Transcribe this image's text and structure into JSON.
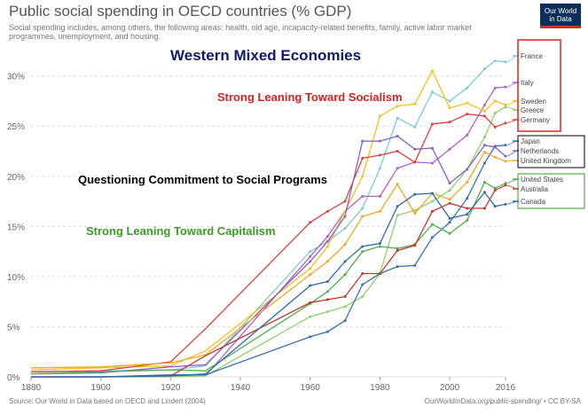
{
  "header": {
    "title": "Public social spending in OECD countries (% GDP)",
    "subtitle": "Social spending includes, among others, the following areas: health, old age, incapacity-related benefits, family, active labor market programmes, unemployment, and housing.",
    "logo_line1": "Our World",
    "logo_line2": "in Data"
  },
  "footer": {
    "source": "Source: Our World in Data based on OECD and Lindert (2004)",
    "url": "OurWorldInData.org/public-spending/ • CC BY-SA"
  },
  "overlays": {
    "western": {
      "text": "Western Mixed Economies",
      "color": "#0d1b6e"
    },
    "socialism": {
      "text": "Strong Leaning Toward Socialism",
      "color": "#e02020"
    },
    "questioning": {
      "text": "Questioning Commitment to Social Programs",
      "color": "#000000"
    },
    "capitalism": {
      "text": "Strong Leaning Toward Capitalism",
      "color": "#3a9d23"
    }
  },
  "groups": [
    {
      "color": "#e02020",
      "members": [
        "France",
        "Italy",
        "Sweden",
        "Greece",
        "Germany"
      ]
    },
    {
      "color": "#000000",
      "members": [
        "Japan",
        "Netherlands",
        "United Kingdom"
      ]
    },
    {
      "color": "#3a9d23",
      "members": [
        "United States",
        "Australia",
        "Canada"
      ]
    }
  ],
  "chart_data": {
    "type": "line",
    "title": "Public social spending in OECD countries (% GDP)",
    "xlim": [
      1880,
      2016
    ],
    "ylim": [
      0,
      32
    ],
    "x_ticks": [
      "1880",
      "1900",
      "1920",
      "1940",
      "1960",
      "1980",
      "2000",
      "2016"
    ],
    "x_tick_values": [
      1880,
      1900,
      1920,
      1940,
      1960,
      1980,
      2000,
      2016
    ],
    "y_ticks": [
      "0%",
      "5%",
      "10%",
      "15%",
      "20%",
      "25%",
      "30%"
    ],
    "y_tick_values": [
      0,
      5,
      10,
      15,
      20,
      25,
      30
    ],
    "grid": true,
    "legend": "right end labels",
    "series": [
      {
        "name": "France",
        "color": "#7ec8d8",
        "points": [
          [
            1880,
            0.5
          ],
          [
            1900,
            0.6
          ],
          [
            1920,
            0.7
          ],
          [
            1930,
            1.1
          ],
          [
            1960,
            12.5
          ],
          [
            1965,
            13.5
          ],
          [
            1970,
            14.8
          ],
          [
            1975,
            16.8
          ],
          [
            1980,
            20.8
          ],
          [
            1985,
            25.8
          ],
          [
            1990,
            24.9
          ],
          [
            1995,
            28.4
          ],
          [
            2000,
            27.5
          ],
          [
            2005,
            28.8
          ],
          [
            2010,
            30.7
          ],
          [
            2013,
            31.5
          ],
          [
            2016,
            31.4
          ]
        ]
      },
      {
        "name": "Italy",
        "color": "#b05ec9",
        "points": [
          [
            1880,
            0.0
          ],
          [
            1900,
            0.0
          ],
          [
            1920,
            0.1
          ],
          [
            1930,
            0.1
          ],
          [
            1960,
            12.0
          ],
          [
            1965,
            14.0
          ],
          [
            1970,
            16.5
          ],
          [
            1975,
            18.0
          ],
          [
            1980,
            18.0
          ],
          [
            1985,
            20.8
          ],
          [
            1990,
            21.4
          ],
          [
            1995,
            21.3
          ],
          [
            2000,
            22.7
          ],
          [
            2005,
            24.1
          ],
          [
            2010,
            27.1
          ],
          [
            2013,
            28.8
          ],
          [
            2016,
            28.9
          ]
        ]
      },
      {
        "name": "Sweden",
        "color": "#f2c21a",
        "points": [
          [
            1880,
            0.7
          ],
          [
            1900,
            0.9
          ],
          [
            1920,
            1.1
          ],
          [
            1930,
            2.6
          ],
          [
            1960,
            10.8
          ],
          [
            1965,
            13.0
          ],
          [
            1970,
            16.5
          ],
          [
            1975,
            20.0
          ],
          [
            1980,
            26.0
          ],
          [
            1985,
            27.0
          ],
          [
            1990,
            27.2
          ],
          [
            1995,
            30.5
          ],
          [
            2000,
            26.8
          ],
          [
            2005,
            27.3
          ],
          [
            2010,
            26.5
          ],
          [
            2013,
            27.5
          ],
          [
            2016,
            27.1
          ]
        ]
      },
      {
        "name": "Greece",
        "color": "#8ed06a",
        "points": [
          [
            1880,
            0.0
          ],
          [
            1900,
            0.0
          ],
          [
            1920,
            0.0
          ],
          [
            1930,
            0.1
          ],
          [
            1960,
            6.0
          ],
          [
            1965,
            6.5
          ],
          [
            1970,
            7.0
          ],
          [
            1975,
            8.0
          ],
          [
            1980,
            10.3
          ],
          [
            1985,
            16.1
          ],
          [
            1990,
            16.6
          ],
          [
            1995,
            17.5
          ],
          [
            2000,
            18.6
          ],
          [
            2005,
            20.7
          ],
          [
            2010,
            23.9
          ],
          [
            2013,
            26.3
          ],
          [
            2016,
            26.9
          ]
        ]
      },
      {
        "name": "Germany",
        "color": "#e0403a",
        "points": [
          [
            1880,
            0.5
          ],
          [
            1900,
            0.6
          ],
          [
            1920,
            1.5
          ],
          [
            1930,
            4.8
          ],
          [
            1960,
            15.4
          ],
          [
            1965,
            16.5
          ],
          [
            1970,
            17.5
          ],
          [
            1975,
            21.8
          ],
          [
            1980,
            22.1
          ],
          [
            1985,
            22.5
          ],
          [
            1990,
            21.4
          ],
          [
            1995,
            25.2
          ],
          [
            2000,
            25.4
          ],
          [
            2005,
            26.2
          ],
          [
            2010,
            26.0
          ],
          [
            2013,
            24.9
          ],
          [
            2016,
            25.3
          ]
        ]
      },
      {
        "name": "Japan",
        "color": "#3a6fb5",
        "points": [
          [
            1880,
            0.0
          ],
          [
            1900,
            0.0
          ],
          [
            1920,
            0.2
          ],
          [
            1930,
            0.2
          ],
          [
            1960,
            4.0
          ],
          [
            1965,
            4.5
          ],
          [
            1970,
            5.6
          ],
          [
            1975,
            9.2
          ],
          [
            1980,
            10.3
          ],
          [
            1985,
            11.0
          ],
          [
            1990,
            11.1
          ],
          [
            1995,
            13.9
          ],
          [
            2000,
            15.4
          ],
          [
            2005,
            17.8
          ],
          [
            2010,
            21.3
          ],
          [
            2013,
            23.0
          ],
          [
            2016,
            23.1
          ]
        ]
      },
      {
        "name": "Netherlands",
        "color": "#8a60c8",
        "points": [
          [
            1880,
            0.3
          ],
          [
            1900,
            0.4
          ],
          [
            1920,
            1.0
          ],
          [
            1930,
            1.2
          ],
          [
            1960,
            11.5
          ],
          [
            1965,
            13.5
          ],
          [
            1970,
            16.0
          ],
          [
            1975,
            23.5
          ],
          [
            1980,
            23.5
          ],
          [
            1985,
            24.0
          ],
          [
            1990,
            22.7
          ],
          [
            1995,
            22.8
          ],
          [
            2000,
            19.3
          ],
          [
            2005,
            20.7
          ],
          [
            2010,
            23.1
          ],
          [
            2013,
            22.9
          ],
          [
            2016,
            22.0
          ]
        ]
      },
      {
        "name": "United Kingdom",
        "color": "#f5a623",
        "points": [
          [
            1880,
            0.9
          ],
          [
            1900,
            1.0
          ],
          [
            1920,
            1.4
          ],
          [
            1930,
            2.2
          ],
          [
            1960,
            10.2
          ],
          [
            1965,
            11.5
          ],
          [
            1970,
            13.2
          ],
          [
            1975,
            16.0
          ],
          [
            1980,
            16.5
          ],
          [
            1985,
            19.2
          ],
          [
            1990,
            16.3
          ],
          [
            1995,
            18.3
          ],
          [
            2000,
            17.7
          ],
          [
            2005,
            19.4
          ],
          [
            2010,
            22.4
          ],
          [
            2013,
            21.9
          ],
          [
            2016,
            21.5
          ]
        ]
      },
      {
        "name": "United States",
        "color": "#4caf50",
        "points": [
          [
            1880,
            0.3
          ],
          [
            1900,
            0.5
          ],
          [
            1920,
            0.7
          ],
          [
            1930,
            0.6
          ],
          [
            1960,
            7.3
          ],
          [
            1965,
            8.5
          ],
          [
            1970,
            10.2
          ],
          [
            1975,
            12.5
          ],
          [
            1980,
            13.0
          ],
          [
            1985,
            12.8
          ],
          [
            1990,
            13.2
          ],
          [
            1995,
            15.2
          ],
          [
            2000,
            14.3
          ],
          [
            2005,
            15.6
          ],
          [
            2010,
            19.4
          ],
          [
            2013,
            18.8
          ],
          [
            2016,
            19.3
          ]
        ]
      },
      {
        "name": "Australia",
        "color": "#c0392b",
        "points": [
          [
            1880,
            0.0
          ],
          [
            1900,
            0.0
          ],
          [
            1920,
            0.1
          ],
          [
            1930,
            2.1
          ],
          [
            1960,
            7.4
          ],
          [
            1965,
            7.7
          ],
          [
            1970,
            8.0
          ],
          [
            1975,
            10.3
          ],
          [
            1980,
            10.3
          ],
          [
            1985,
            12.6
          ],
          [
            1990,
            13.1
          ],
          [
            1995,
            16.5
          ],
          [
            2000,
            17.3
          ],
          [
            2005,
            16.8
          ],
          [
            2010,
            16.8
          ],
          [
            2013,
            18.6
          ],
          [
            2016,
            19.1
          ]
        ]
      },
      {
        "name": "Canada",
        "color": "#2e6aa8",
        "points": [
          [
            1880,
            0.0
          ],
          [
            1900,
            0.0
          ],
          [
            1920,
            0.1
          ],
          [
            1930,
            0.3
          ],
          [
            1960,
            9.1
          ],
          [
            1965,
            9.5
          ],
          [
            1970,
            11.5
          ],
          [
            1975,
            13.0
          ],
          [
            1980,
            13.3
          ],
          [
            1985,
            17.0
          ],
          [
            1990,
            18.2
          ],
          [
            1995,
            18.3
          ],
          [
            2000,
            15.8
          ],
          [
            2005,
            16.2
          ],
          [
            2010,
            18.4
          ],
          [
            2013,
            17.0
          ],
          [
            2016,
            17.2
          ]
        ]
      }
    ]
  }
}
